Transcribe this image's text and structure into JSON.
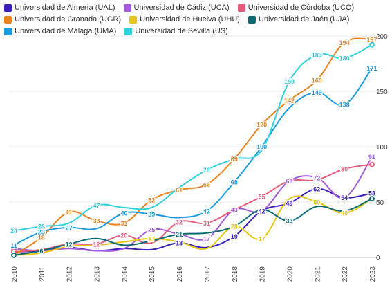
{
  "chart_data": {
    "type": "line",
    "x": [
      "2010",
      "2011",
      "2012",
      "2013",
      "2014",
      "2015",
      "2016",
      "2017",
      "2018",
      "2019",
      "2020",
      "2021",
      "2022",
      "2023"
    ],
    "ylim": [
      0,
      200
    ],
    "yticks": [
      0,
      50,
      100,
      150,
      200
    ],
    "grid": "horizontal",
    "legend": "top",
    "series": [
      {
        "name": "Universidad de Almería (UAL)",
        "color": "#3b1fb8",
        "values": [
          5,
          6,
          9,
          6,
          8,
          7,
          13,
          9,
          19,
          42,
          49,
          62,
          54,
          58
        ],
        "labels": [
          null,
          null,
          null,
          null,
          null,
          null,
          "13",
          null,
          "19",
          "42",
          "49",
          "62",
          "54",
          "58"
        ]
      },
      {
        "name": "Universidad de Cádiz (UCA)",
        "color": "#a35bdc",
        "values": [
          8,
          6,
          8,
          6,
          8,
          25,
          21,
          17,
          43,
          42,
          69,
          72,
          54,
          91
        ],
        "labels": [
          null,
          null,
          null,
          null,
          null,
          "25",
          null,
          "17",
          "43",
          null,
          "69",
          "72",
          null,
          "91"
        ]
      },
      {
        "name": "Universidad de Córdoba (UCO)",
        "color": "#e55b7a",
        "values": [
          5,
          7,
          12,
          12,
          20,
          13,
          32,
          31,
          43,
          55,
          69,
          70,
          80,
          84
        ],
        "labels": [
          null,
          null,
          "12",
          "12",
          "20",
          null,
          "32",
          "31",
          null,
          "55",
          null,
          null,
          "80",
          null
        ]
      },
      {
        "name": "Universidad de Granada (UGR)",
        "color": "#e8831f",
        "values": [
          2,
          18,
          41,
          33,
          31,
          52,
          61,
          66,
          89,
          120,
          142,
          160,
          194,
          197
        ],
        "labels": [
          "2",
          "18",
          "41",
          "33",
          "31",
          "52",
          "61",
          "66",
          "89",
          "120",
          "142",
          "160",
          "194",
          "197"
        ]
      },
      {
        "name": "Universidad de Huelva (UHU)",
        "color": "#e8c714",
        "values": [
          2,
          4,
          10,
          11,
          14,
          17,
          14,
          8,
          28,
          17,
          53,
          50,
          40,
          53
        ],
        "labels": [
          null,
          null,
          null,
          null,
          null,
          "17",
          null,
          null,
          "28",
          "17",
          null,
          "50",
          "40",
          null
        ]
      },
      {
        "name": "Universidad de Jaén (UJA)",
        "color": "#0b6b75",
        "values": [
          2,
          6,
          12,
          17,
          11,
          15,
          21,
          22,
          28,
          43,
          33,
          46,
          42,
          53
        ],
        "labels": [
          null,
          "6",
          "12",
          null,
          null,
          null,
          "21",
          null,
          null,
          null,
          "33",
          null,
          null,
          null
        ]
      },
      {
        "name": "Universidad de Málaga (UMA)",
        "color": "#1a9ae0",
        "values": [
          11,
          23,
          27,
          26,
          40,
          39,
          36,
          42,
          68,
          100,
          135,
          149,
          138,
          171
        ],
        "labels": [
          "11",
          "23",
          "27",
          null,
          "40",
          "39",
          null,
          "42",
          "68",
          "100",
          null,
          "149",
          "138",
          "171"
        ]
      },
      {
        "name": "Universidad de Sevilla (US)",
        "color": "#2fd0dc",
        "values": [
          24,
          28,
          31,
          47,
          45,
          45,
          63,
          79,
          89,
          97,
          159,
          183,
          180,
          192
        ],
        "labels": [
          "24",
          "28",
          null,
          "47",
          null,
          null,
          null,
          "79",
          null,
          null,
          "159",
          "183",
          "180",
          null
        ]
      }
    ]
  }
}
